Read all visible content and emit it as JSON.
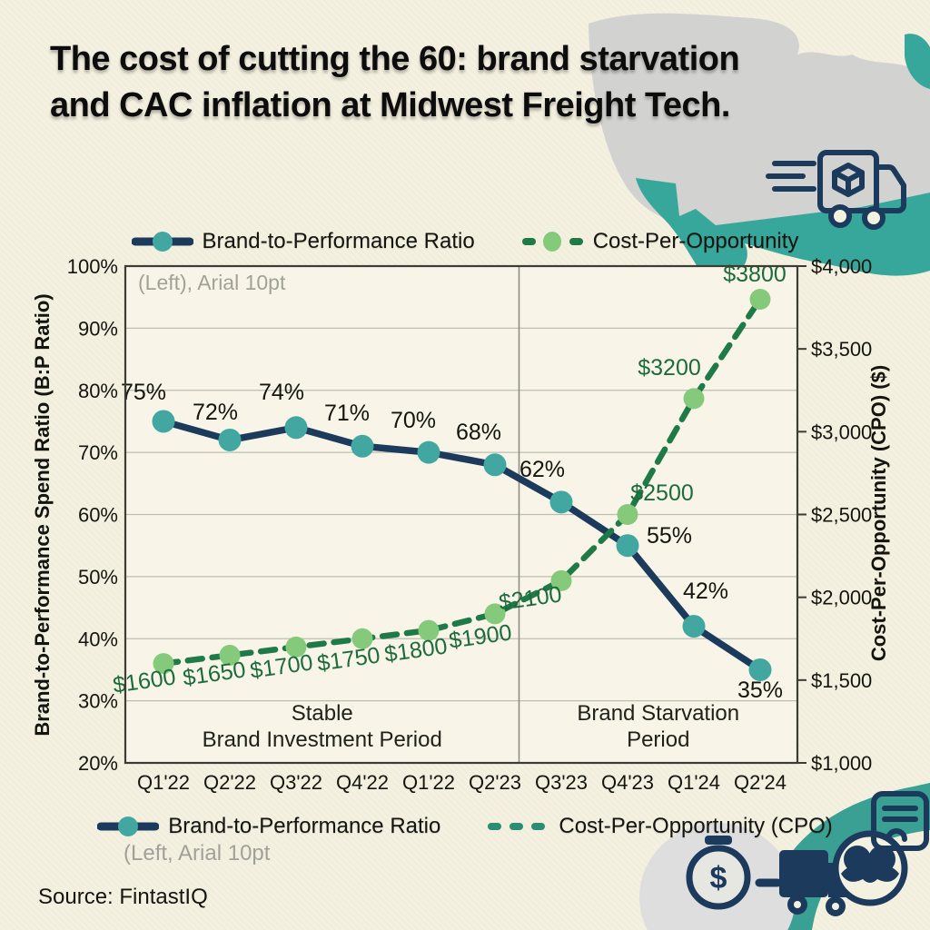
{
  "page": {
    "title_lines": [
      "The cost of cutting the 60: brand starvation",
      "and CAC inflation at Midwest Freight Tech."
    ],
    "source": "Source: FintastIQ"
  },
  "notes": {
    "in_plot": "(Left), Arial 10pt",
    "bottom": "(Left, Arial 10pt"
  },
  "legend_top": {
    "items": [
      {
        "label": "Brand-to-Performance Ratio",
        "marker": "navy-line-teal-dot"
      },
      {
        "label": "Cost-Per-Opportunity",
        "marker": "green-dashes-lightgreen-dot"
      }
    ]
  },
  "legend_bottom": {
    "items": [
      {
        "label": "Brand-to-Performance Ratio",
        "marker": "navy-line-teal-dot"
      },
      {
        "label": "Cost-Per-Opportunity (CPO)",
        "marker": "teal-green-dashes"
      }
    ]
  },
  "colors": {
    "background": "#f5f1e1",
    "plot_background": "#f8f5e8",
    "navy_line": "#1b3a5c",
    "teal_marker": "#42a7a1",
    "green_dash": "#1f7a47",
    "light_green_marker": "#85ca7b",
    "cpo_label_green": "#1d6b3a",
    "grid": "#bdbdb2",
    "plot_border": "#3c3c34",
    "divider": "#8f8f85",
    "map_gray": "#d2d2d0",
    "map_teal": "#38a79b",
    "icon_navy": "#1b3a5c",
    "swoosh_teal": "#3aa093",
    "blob_gray": "#dedeals"
  },
  "decor": {
    "stopwatch_symbol": "$",
    "icons": [
      "us-map",
      "delivery-truck-outline",
      "stopwatch-dollar",
      "freight-truck",
      "cloud-badge",
      "document-card",
      "teal-swoosh",
      "gray-blob"
    ]
  },
  "chart_data": {
    "type": "line",
    "title": "The cost of cutting the 60: brand starvation and CAC inflation at Midwest Freight Tech.",
    "categories": [
      "Q1'22",
      "Q2'22",
      "Q3'22",
      "Q4'22",
      "Q1'22",
      "Q2'23",
      "Q3'23",
      "Q4'23",
      "Q1'24",
      "Q2'24"
    ],
    "series": [
      {
        "name": "Brand-to-Performance Ratio",
        "axis": "left",
        "style": "solid",
        "line_color": "#1b3a5c",
        "marker_color": "#42a7a1",
        "values": [
          75,
          72,
          74,
          71,
          70,
          68,
          62,
          55,
          42,
          35
        ],
        "labels": [
          "75%",
          "72%",
          "74%",
          "71%",
          "70%",
          "68%",
          "62%",
          "55%",
          "42%",
          "35%"
        ]
      },
      {
        "name": "Cost-Per-Opportunity (CPO)",
        "axis": "right",
        "style": "dashed",
        "line_color": "#1f7a47",
        "marker_color": "#85ca7b",
        "values": [
          1600,
          1650,
          1700,
          1750,
          1800,
          1900,
          2100,
          2500,
          3200,
          3800
        ],
        "labels": [
          "$1600",
          "$1650",
          "$1700",
          "$1750",
          "$1800",
          "$1900",
          "$2100",
          "$2500",
          "$3200",
          "$3800"
        ]
      }
    ],
    "left_axis": {
      "title": "Brand-to-Performance Spend Ratio (B:P Ratio)",
      "min": 20,
      "max": 100,
      "tick_step": 10,
      "tick_labels": [
        "20%",
        "30%",
        "40%",
        "50%",
        "60%",
        "70%",
        "80%",
        "90%",
        "100%"
      ]
    },
    "right_axis": {
      "title": "Cost-Per-Opportunity (CPO) ($)",
      "min": 1000,
      "max": 4000,
      "tick_step": 500,
      "tick_labels": [
        "$1,000",
        "$1,500",
        "$2,000",
        "$2,500",
        "$3,000",
        "$3,500",
        "$4,000"
      ]
    },
    "annotations": [
      {
        "lines": [
          "Stable",
          "Brand Investment Period"
        ],
        "region": "left-of-divider"
      },
      {
        "lines": [
          "Brand Starvation",
          "Period"
        ],
        "region": "right-of-divider"
      }
    ],
    "divider_after_category_index": 5,
    "grid": true,
    "legend_position": "top-and-bottom"
  }
}
